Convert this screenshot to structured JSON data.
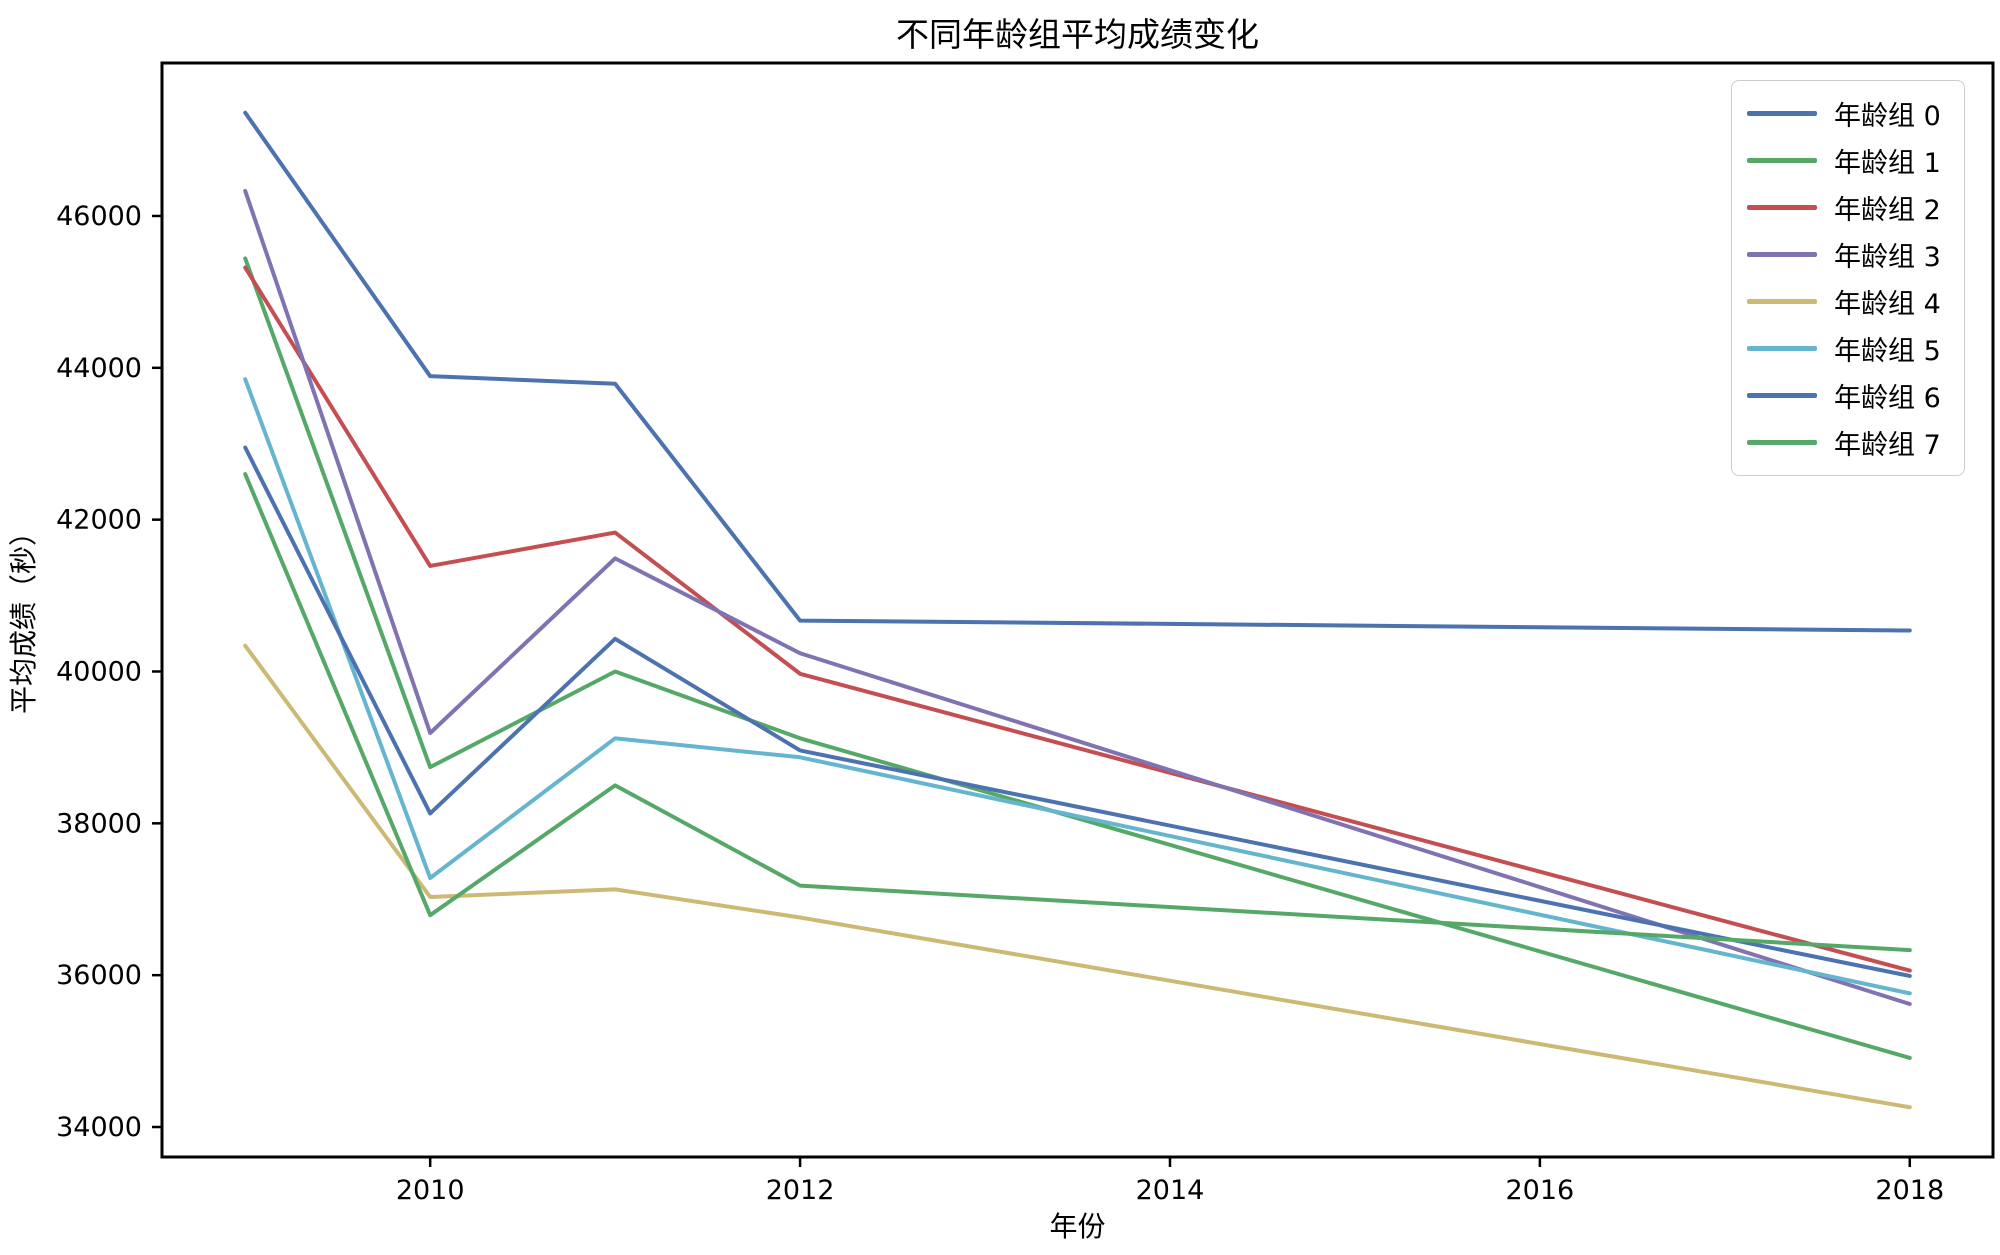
{
  "chart_data": {
    "type": "line",
    "title": "不同年龄组平均成绩变化",
    "xlabel": "年份",
    "ylabel": "平均成绩（秒）",
    "x": [
      2009,
      2010,
      2011,
      2012,
      2018
    ],
    "series": [
      {
        "name": "年龄组 0",
        "color": "#4C72B0",
        "values": [
          47360,
          43890,
          43790,
          40670,
          40540
        ]
      },
      {
        "name": "年龄组 1",
        "color": "#55A868",
        "values": [
          45440,
          38740,
          40000,
          39120,
          34910
        ]
      },
      {
        "name": "年龄组 2",
        "color": "#C44E52",
        "values": [
          45320,
          41390,
          41830,
          39970,
          36060
        ]
      },
      {
        "name": "年龄组 3",
        "color": "#8172B2",
        "values": [
          46330,
          39190,
          41490,
          40240,
          35620
        ]
      },
      {
        "name": "年龄组 4",
        "color": "#CCB974",
        "values": [
          40340,
          37030,
          37130,
          36760,
          34260
        ]
      },
      {
        "name": "年龄组 5",
        "color": "#64B5CD",
        "values": [
          43850,
          37280,
          39120,
          38870,
          35760
        ]
      },
      {
        "name": "年龄组 6",
        "color": "#4C72B0",
        "values": [
          42950,
          38130,
          40430,
          38960,
          35990
        ]
      },
      {
        "name": "年龄组 7",
        "color": "#55A868",
        "values": [
          42600,
          36790,
          38500,
          37180,
          36330
        ]
      }
    ],
    "x_ticks": [
      2010,
      2012,
      2014,
      2016,
      2018
    ],
    "y_ticks": [
      34000,
      36000,
      38000,
      40000,
      42000,
      44000,
      46000
    ],
    "xlim": [
      2008.55,
      2018.45
    ],
    "ylim": [
      33605,
      48015
    ],
    "grid": false,
    "legend_position": "upper right",
    "axis_color": "#000000"
  }
}
